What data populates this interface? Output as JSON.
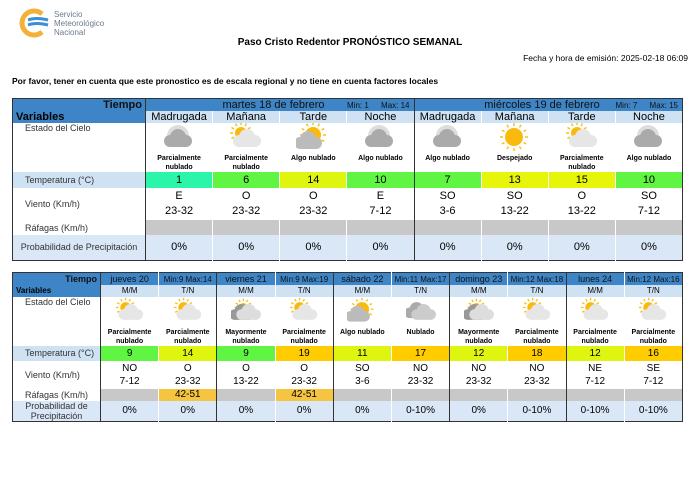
{
  "logo": {
    "line1": "Servicio",
    "line2": "Meteorológico",
    "line3": "Nacional"
  },
  "title": "Paso Cristo Redentor PRONÓSTICO SEMANAL",
  "emission": "Fecha y hora de emisión: 2025-02-18 06:09",
  "note": "Por favor, tener en cuenta que este pronostico es de escala regional y no tiene en cuenta factores locales",
  "labels": {
    "tiempo": "Tiempo",
    "variables": "Variables",
    "sky": "Estado del Cielo",
    "temp": "Temperatura (°C)",
    "wind": "Viento (Km/h)",
    "gust": "Ráfagas (Km/h)",
    "prec": "Probabilidad de Precipitación"
  },
  "colors": {
    "header": "#3d85c6",
    "subheader": "#cfe2f3",
    "gust_empty": "#c8c8c8",
    "gust_alert": "#f5c542",
    "precip": "#d9e7f7"
  },
  "table1": [
    {
      "day": "martes 18 de febrero",
      "min": "Min: 1",
      "max": "Max: 14",
      "periods": [
        {
          "name": "Madrugada",
          "icon": "cloudy-night",
          "sky": "Parcialmente nublado",
          "temp": "1",
          "tcolor": "#2af5a8",
          "dir": "E",
          "speed": "23-32",
          "gust": "",
          "prec": "0%"
        },
        {
          "name": "Mañana",
          "icon": "partly-cloudy",
          "sky": "Parcialmente nublado",
          "temp": "6",
          "tcolor": "#5ff542",
          "dir": "O",
          "speed": "23-32",
          "gust": "",
          "prec": "0%"
        },
        {
          "name": "Tarde",
          "icon": "sun-cloud",
          "sky": "Algo nublado",
          "temp": "14",
          "tcolor": "#def50f",
          "dir": "O",
          "speed": "23-32",
          "gust": "",
          "prec": "0%"
        },
        {
          "name": "Noche",
          "icon": "cloudy-night",
          "sky": "Algo nublado",
          "temp": "10",
          "tcolor": "#5ff542",
          "dir": "E",
          "speed": "7-12",
          "gust": "",
          "prec": "0%"
        }
      ]
    },
    {
      "day": "miércoles 19 de febrero",
      "min": "Min: 7",
      "max": "Max: 15",
      "periods": [
        {
          "name": "Madrugada",
          "icon": "cloudy-night",
          "sky": "Algo nublado",
          "temp": "7",
          "tcolor": "#5ff542",
          "dir": "SO",
          "speed": "3-6",
          "gust": "",
          "prec": "0%"
        },
        {
          "name": "Mañana",
          "icon": "clear",
          "sky": "Despejado",
          "temp": "13",
          "tcolor": "#e6f50a",
          "dir": "SO",
          "speed": "13-22",
          "gust": "",
          "prec": "0%"
        },
        {
          "name": "Tarde",
          "icon": "partly-cloudy",
          "sky": "Parcialmente nublado",
          "temp": "15",
          "tcolor": "#e6f50a",
          "dir": "O",
          "speed": "13-22",
          "gust": "",
          "prec": "0%"
        },
        {
          "name": "Noche",
          "icon": "cloudy-night",
          "sky": "Algo nublado",
          "temp": "10",
          "tcolor": "#5ff542",
          "dir": "SO",
          "speed": "7-12",
          "gust": "",
          "prec": "0%"
        }
      ]
    }
  ],
  "table2": [
    {
      "day": "jueves 20",
      "minmax": "Min:9  Max:14",
      "periods": [
        {
          "name": "M/M",
          "icon": "partly-cloudy",
          "sky": "Parcialmente nublado",
          "temp": "9",
          "tcolor": "#5ff542",
          "dir": "NO",
          "speed": "7-12",
          "gust": "",
          "prec": "0%"
        },
        {
          "name": "T/N",
          "icon": "partly-cloudy",
          "sky": "Parcialmente nublado",
          "temp": "14",
          "tcolor": "#def50f",
          "dir": "O",
          "speed": "23-32",
          "gust": "42-51",
          "prec": "0%"
        }
      ]
    },
    {
      "day": "viernes 21",
      "minmax": "Min:9  Max:19",
      "periods": [
        {
          "name": "M/M",
          "icon": "mostly-cloudy",
          "sky": "Mayormente nublado",
          "temp": "9",
          "tcolor": "#5ff542",
          "dir": "O",
          "speed": "13-22",
          "gust": "",
          "prec": "0%"
        },
        {
          "name": "T/N",
          "icon": "partly-cloudy",
          "sky": "Parcialmente nublado",
          "temp": "19",
          "tcolor": "#ffcc00",
          "dir": "O",
          "speed": "23-32",
          "gust": "42-51",
          "prec": "0%"
        }
      ]
    },
    {
      "day": "sábado 22",
      "minmax": "Min:11 Max:17",
      "periods": [
        {
          "name": "M/M",
          "icon": "sun-cloud",
          "sky": "Algo nublado",
          "temp": "11",
          "tcolor": "#def50f",
          "dir": "SO",
          "speed": "3-6",
          "gust": "",
          "prec": "0%"
        },
        {
          "name": "T/N",
          "icon": "overcast",
          "sky": "Nublado",
          "temp": "17",
          "tcolor": "#ffcc00",
          "dir": "NO",
          "speed": "23-32",
          "gust": "",
          "prec": "0-10%"
        }
      ]
    },
    {
      "day": "domingo 23",
      "minmax": "Min:12 Max:18",
      "periods": [
        {
          "name": "M/M",
          "icon": "mostly-cloudy",
          "sky": "Mayormente nublado",
          "temp": "12",
          "tcolor": "#def50f",
          "dir": "NO",
          "speed": "23-32",
          "gust": "",
          "prec": "0%"
        },
        {
          "name": "T/N",
          "icon": "partly-cloudy",
          "sky": "Parcialmente nublado",
          "temp": "18",
          "tcolor": "#ffcc00",
          "dir": "NO",
          "speed": "23-32",
          "gust": "",
          "prec": "0-10%"
        }
      ]
    },
    {
      "day": "lunes 24",
      "minmax": "Min:12 Max:16",
      "periods": [
        {
          "name": "M/M",
          "icon": "partly-cloudy",
          "sky": "Parcialmente nublado",
          "temp": "12",
          "tcolor": "#def50f",
          "dir": "NE",
          "speed": "7-12",
          "gust": "",
          "prec": "0-10%"
        },
        {
          "name": "T/N",
          "icon": "partly-cloudy",
          "sky": "Parcialmente nublado",
          "temp": "16",
          "tcolor": "#ffcc00",
          "dir": "SE",
          "speed": "7-12",
          "gust": "",
          "prec": "0-10%"
        }
      ]
    }
  ]
}
